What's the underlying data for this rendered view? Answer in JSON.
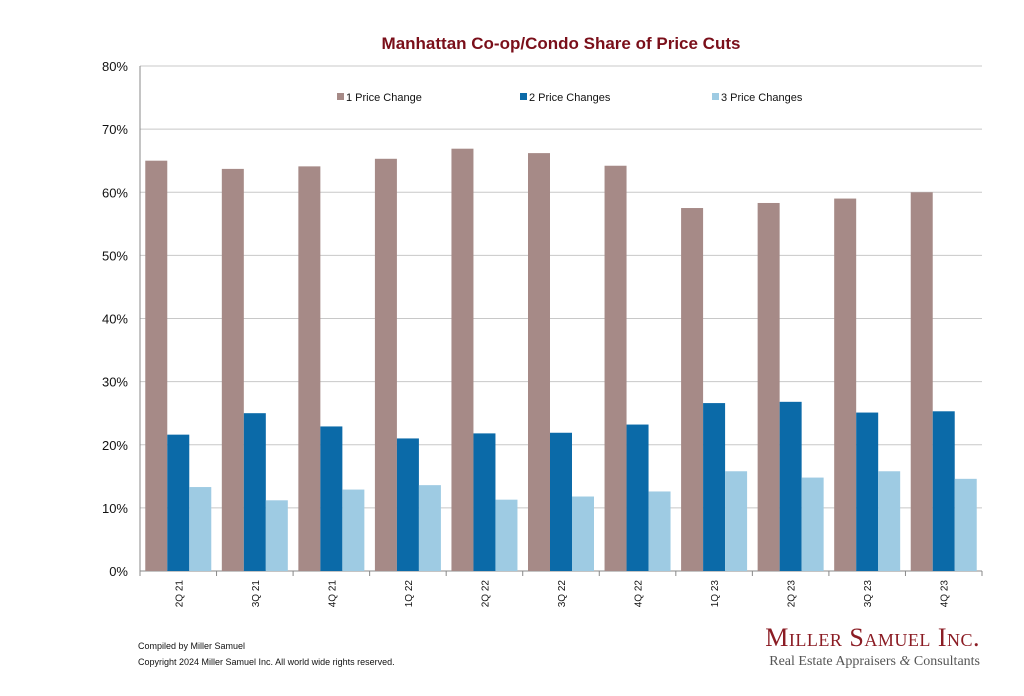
{
  "chart_data": {
    "type": "bar",
    "title": "Manhattan Co-op/Condo Share of Price Cuts",
    "categories": [
      "2Q 21",
      "3Q 21",
      "4Q 21",
      "1Q 22",
      "2Q 22",
      "3Q 22",
      "4Q 22",
      "1Q 23",
      "2Q 23",
      "3Q 23",
      "4Q 23"
    ],
    "series": [
      {
        "name": "1 Price Change",
        "color": "#a68a87",
        "values": [
          65.0,
          63.7,
          64.1,
          65.3,
          66.9,
          66.2,
          64.2,
          57.5,
          58.3,
          59.0,
          60.0
        ]
      },
      {
        "name": "2 Price Changes",
        "color": "#0b6aa8",
        "values": [
          21.6,
          25.0,
          22.9,
          21.0,
          21.8,
          21.9,
          23.2,
          26.6,
          26.8,
          25.1,
          25.3
        ]
      },
      {
        "name": "3 Price Changes",
        "color": "#9ecbe3",
        "values": [
          13.3,
          11.2,
          12.9,
          13.6,
          11.3,
          11.8,
          12.6,
          15.8,
          14.8,
          15.8,
          14.6
        ]
      }
    ],
    "yticks": [
      "0%",
      "10%",
      "20%",
      "30%",
      "40%",
      "50%",
      "60%",
      "70%",
      "80%"
    ],
    "ylim": [
      0,
      80
    ],
    "grid": true,
    "legend_position": "top"
  },
  "footer": {
    "compiled": "Compiled by Miller Samuel",
    "copyright": "Copyright 2024 Miller Samuel Inc.  All world wide rights reserved."
  },
  "logo": {
    "name": "Miller Samuel Inc.",
    "tagline_a": "Real Estate Appraisers",
    "amp": "&",
    "tagline_b": "Consultants"
  },
  "colors": {
    "title": "#7a0f1a",
    "grid": "#c8c8c8"
  }
}
